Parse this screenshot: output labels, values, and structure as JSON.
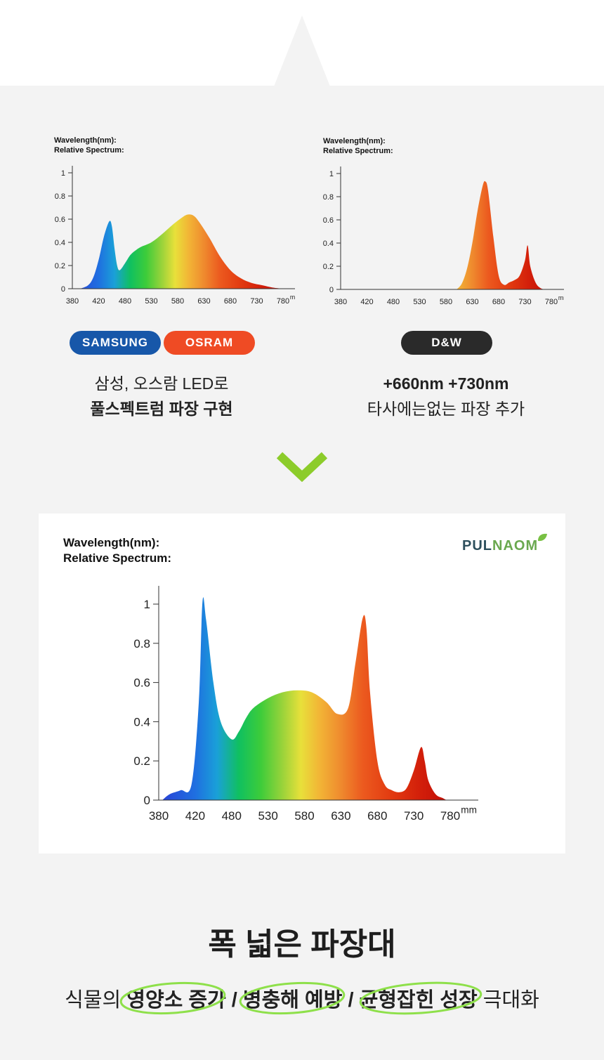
{
  "colors": {
    "samsung": "#1757a9",
    "osram": "#ef4b24",
    "dw": "#2a2a2a",
    "accent_green": "#8ccc2a",
    "panel": "#f3f3f3"
  },
  "left_chart": {
    "wl_line1": "Wavelength(nm):",
    "wl_line2": "Relative Spectrum:",
    "unit": "mm"
  },
  "right_chart": {
    "wl_line1": "Wavelength(nm):",
    "wl_line2": "Relative Spectrum:",
    "unit": "mm"
  },
  "main_chart": {
    "wl_line1": "Wavelength(nm):",
    "wl_line2": "Relative Spectrum:",
    "unit": "mm"
  },
  "brands": {
    "samsung": "SAMSUNG",
    "osram": "OSRAM",
    "dw": "D&W"
  },
  "left_caption": {
    "line1": "삼성, 오스람 LED로",
    "line2": "풀스펙트럼 파장 구현"
  },
  "right_caption": {
    "line1": "+660nm +730nm",
    "line2": "타사에는없는 파장 추가"
  },
  "logo": {
    "pul": "PUL",
    "naom": "NAOM"
  },
  "headline": "폭 넓은 파장대",
  "subline": {
    "part1": "식물의 ",
    "part2": "영양소 증가",
    "part3": " / ",
    "part4": "병충해 예방",
    "part5": " / ",
    "part6": "균형잡힌 성장",
    "part7": " 극대화"
  },
  "chart_data": [
    {
      "type": "area",
      "title": "",
      "xlabel": "Wavelength(nm):",
      "ylabel": "Relative Spectrum:",
      "x_ticks": [
        380,
        420,
        480,
        530,
        580,
        630,
        680,
        730,
        780
      ],
      "y_ticks": [
        0,
        0.2,
        0.4,
        0.6,
        0.8,
        1
      ],
      "xlim": [
        380,
        780
      ],
      "ylim": [
        0,
        1
      ],
      "x": [
        395,
        410,
        420,
        430,
        440,
        450,
        455,
        460,
        465,
        470,
        480,
        490,
        500,
        510,
        530,
        550,
        570,
        590,
        600,
        610,
        620,
        640,
        660,
        680,
        700,
        720,
        740,
        760,
        780
      ],
      "y": [
        0,
        0.03,
        0.1,
        0.25,
        0.45,
        0.58,
        0.54,
        0.35,
        0.2,
        0.16,
        0.22,
        0.29,
        0.33,
        0.36,
        0.4,
        0.47,
        0.55,
        0.62,
        0.64,
        0.63,
        0.58,
        0.44,
        0.28,
        0.16,
        0.09,
        0.05,
        0.03,
        0.01,
        0
      ]
    },
    {
      "type": "area",
      "title": "",
      "xlabel": "Wavelength(nm):",
      "ylabel": "Relative Spectrum:",
      "x_ticks": [
        380,
        420,
        480,
        530,
        580,
        630,
        680,
        730,
        780
      ],
      "y_ticks": [
        0,
        0.2,
        0.4,
        0.6,
        0.8,
        1
      ],
      "xlim": [
        380,
        780
      ],
      "ylim": [
        0,
        1
      ],
      "x": [
        600,
        610,
        620,
        630,
        640,
        650,
        655,
        660,
        670,
        680,
        690,
        700,
        710,
        720,
        730,
        735,
        740,
        750,
        760,
        770
      ],
      "y": [
        0,
        0.05,
        0.18,
        0.4,
        0.68,
        0.9,
        0.93,
        0.85,
        0.45,
        0.12,
        0.04,
        0.06,
        0.08,
        0.12,
        0.25,
        0.38,
        0.2,
        0.06,
        0.01,
        0
      ]
    },
    {
      "type": "area",
      "title": "",
      "xlabel": "Wavelength(nm):",
      "ylabel": "Relative Spectrum:",
      "x_ticks": [
        380,
        420,
        480,
        530,
        580,
        630,
        680,
        730,
        780
      ],
      "y_ticks": [
        0,
        0.2,
        0.4,
        0.6,
        0.8,
        1
      ],
      "xlim": [
        380,
        780
      ],
      "ylim": [
        0,
        1
      ],
      "x": [
        385,
        395,
        410,
        425,
        435,
        440,
        445,
        455,
        465,
        480,
        490,
        500,
        510,
        530,
        550,
        570,
        590,
        610,
        625,
        640,
        650,
        660,
        665,
        670,
        680,
        690,
        700,
        710,
        720,
        730,
        740,
        745,
        750,
        760,
        770,
        775
      ],
      "y": [
        0,
        0.03,
        0.05,
        0.08,
        0.5,
        1.01,
        0.92,
        0.6,
        0.4,
        0.31,
        0.35,
        0.42,
        0.47,
        0.52,
        0.55,
        0.56,
        0.55,
        0.5,
        0.44,
        0.47,
        0.7,
        0.93,
        0.88,
        0.55,
        0.2,
        0.08,
        0.05,
        0.04,
        0.06,
        0.15,
        0.27,
        0.2,
        0.1,
        0.03,
        0.01,
        0
      ]
    }
  ]
}
